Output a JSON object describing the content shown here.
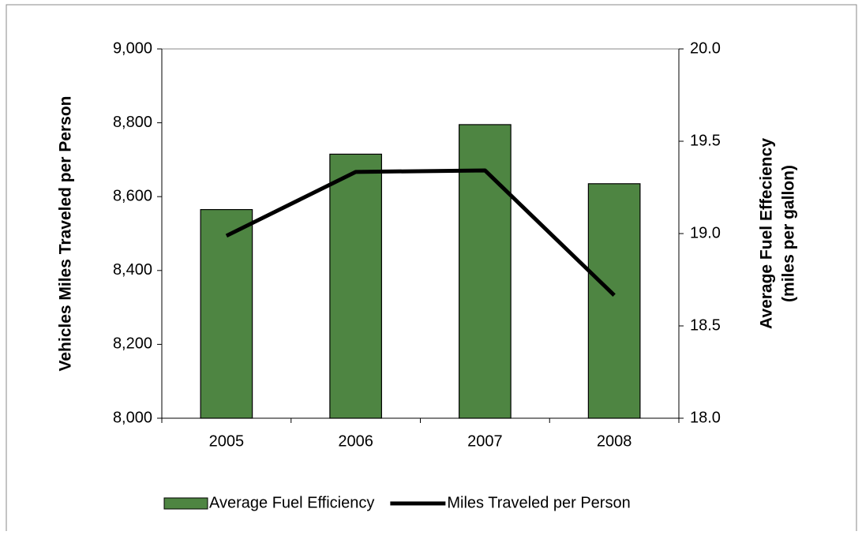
{
  "chart_data": {
    "type": "combo",
    "categories": [
      "2005",
      "2006",
      "2007",
      "2008"
    ],
    "series": [
      {
        "name": "Average Fuel Efficiency",
        "type": "bar",
        "axis": "y2",
        "color": "#4e8542",
        "values": [
          19.13,
          19.43,
          19.59,
          19.27
        ]
      },
      {
        "name": "Miles Traveled per Person",
        "type": "line",
        "color": "#000000",
        "values": [
          8494,
          8667,
          8671,
          8333
        ]
      }
    ],
    "ylabel": "Vehicles Miles Traveled per Person",
    "y2label": [
      "Average Fuel Effeciency",
      "(miles per gallon)"
    ],
    "ylim": [
      8000,
      9000
    ],
    "yticks": [
      {
        "value": 8000,
        "label": "8,000"
      },
      {
        "value": 8200,
        "label": "8,200"
      },
      {
        "value": 8400,
        "label": "8,400"
      },
      {
        "value": 8600,
        "label": "8,600"
      },
      {
        "value": 8800,
        "label": "8,800"
      },
      {
        "value": 9000,
        "label": "9,000"
      }
    ],
    "y2lim": [
      18,
      20
    ],
    "y2ticks": [
      {
        "value": 18,
        "label": "18.0"
      },
      18.5,
      {
        "value": 19,
        "label": "19.0"
      },
      19.5,
      {
        "value": 20,
        "label": "20.0"
      }
    ],
    "legend": "bottom"
  }
}
